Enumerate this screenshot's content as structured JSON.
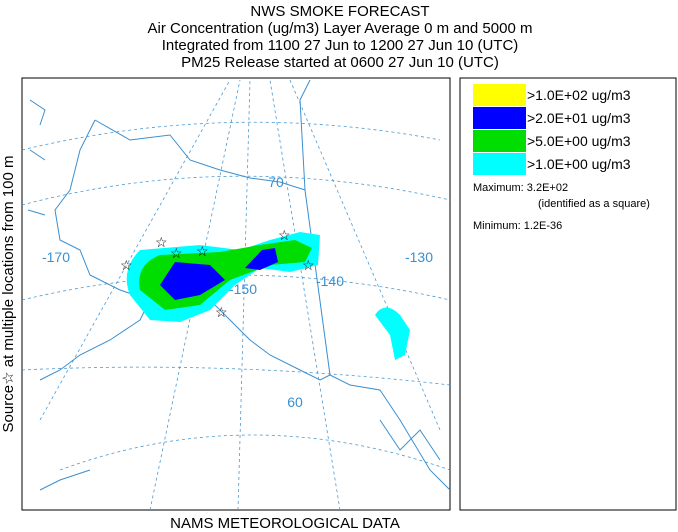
{
  "header": {
    "title": "NWS SMOKE FORECAST",
    "lines": [
      "Air Concentration (ug/m3) Layer Average    0 m and  5000 m",
      "Integrated from 1100 27 Jun to 1200 27 Jun 10 (UTC)",
      "PM25 Release started at 0600 27 Jun 10 (UTC)"
    ]
  },
  "side_label": "Source☆ at multiple locations   from   100 m",
  "map": {
    "grid_labels": [
      "-170",
      "-150",
      "-140",
      "-130",
      "70",
      "60"
    ]
  },
  "legend": {
    "entries": [
      {
        "label": ">1.0E+02 ug/m3",
        "color": "#ffff00"
      },
      {
        "label": ">2.0E+01 ug/m3",
        "color": "#0000ff"
      },
      {
        "label": ">5.0E+00 ug/m3",
        "color": "#00dd00"
      },
      {
        "label": ">1.0E+00 ug/m3",
        "color": "#00ffff"
      }
    ],
    "maximum": "Maximum: 3.2E+02",
    "maximum_note": "(identified as a square)",
    "minimum": "Minimum: 1.2E-36"
  },
  "footer": "NAMS METEOROLOGICAL DATA"
}
